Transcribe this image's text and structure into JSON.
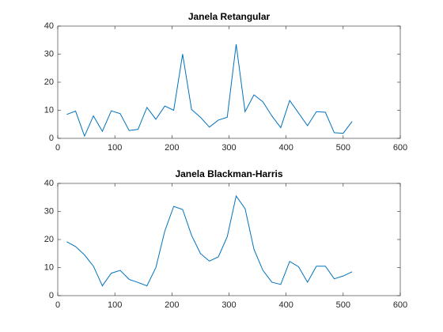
{
  "chart_data": [
    {
      "type": "line",
      "title": "Janela Retangular",
      "x": [
        15.625,
        31.25,
        46.875,
        62.5,
        78.125,
        93.75,
        109.375,
        125,
        140.625,
        156.25,
        171.875,
        187.5,
        203.125,
        218.75,
        234.375,
        250,
        265.625,
        281.25,
        296.875,
        312.5,
        328.125,
        343.75,
        359.375,
        375,
        390.625,
        406.25,
        421.875,
        437.5,
        453.125,
        468.75,
        484.375,
        500,
        515.625
      ],
      "series": [
        {
          "color": "#0072bd",
          "values": [
            8.5,
            9.7,
            0.8,
            8,
            2.5,
            9.8,
            8.8,
            2.8,
            3.2,
            11,
            6.8,
            11.5,
            10,
            30,
            10.3,
            7.5,
            4,
            6.5,
            7.5,
            33.5,
            9.5,
            15.5,
            13,
            8,
            3.8,
            13.5,
            9,
            4.5,
            9.5,
            9.3,
            2,
            1.8,
            6
          ]
        }
      ],
      "xlim": [
        0,
        600
      ],
      "xticks": [
        0,
        100,
        200,
        300,
        400,
        500,
        600
      ],
      "ylim": [
        0,
        40
      ],
      "yticks": [
        0,
        10,
        20,
        30,
        40
      ]
    },
    {
      "type": "line",
      "title": "Janela Blackman-Harris",
      "x": [
        15.625,
        31.25,
        46.875,
        62.5,
        78.125,
        93.75,
        109.375,
        125,
        140.625,
        156.25,
        171.875,
        187.5,
        203.125,
        218.75,
        234.375,
        250,
        265.625,
        281.25,
        296.875,
        312.5,
        328.125,
        343.75,
        359.375,
        375,
        390.625,
        406.25,
        421.875,
        437.5,
        453.125,
        468.75,
        484.375,
        500,
        515.625
      ],
      "series": [
        {
          "color": "#0072bd",
          "values": [
            19.2,
            17.5,
            14.5,
            10.5,
            3.5,
            8,
            9,
            5.8,
            4.7,
            3.5,
            10,
            23,
            31.8,
            30.7,
            21.5,
            15,
            12.3,
            13.8,
            21,
            35.5,
            31,
            16.5,
            9,
            4.8,
            4,
            12.2,
            10.3,
            4.8,
            10.5,
            10.5,
            6,
            7,
            8.5
          ]
        }
      ],
      "xlim": [
        0,
        600
      ],
      "xticks": [
        0,
        100,
        200,
        300,
        400,
        500,
        600
      ],
      "ylim": [
        0,
        40
      ],
      "yticks": [
        0,
        10,
        20,
        30,
        40
      ]
    }
  ]
}
